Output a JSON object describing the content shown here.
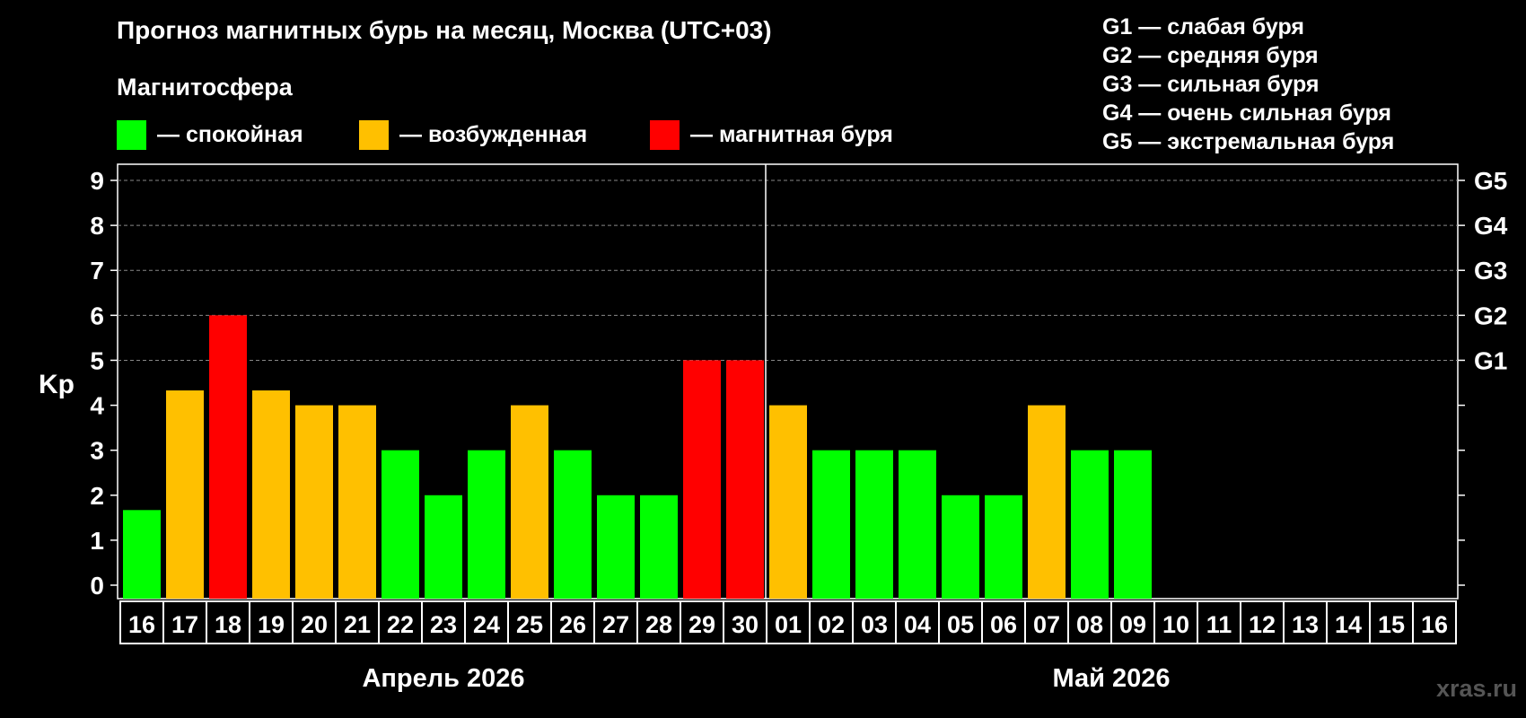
{
  "title": "Прогноз магнитных бурь на месяц, Москва (UTC+03)",
  "subtitle": "Магнитосфера",
  "legend": [
    {
      "label": "— спокойная",
      "color": "#00FF00"
    },
    {
      "label": "— возбужденная",
      "color": "#FFC000"
    },
    {
      "label": "— магнитная буря",
      "color": "#FF0000"
    }
  ],
  "storm_levels": [
    "G1 — слабая буря",
    "G2 — средняя буря",
    "G3 — сильная буря",
    "G4 — очень сильная буря",
    "G5 — экстремальная буря"
  ],
  "watermark": "xras.ru",
  "chart_data": {
    "type": "bar",
    "ylabel": "Kp",
    "ylim": [
      0,
      9
    ],
    "yticks": [
      "0",
      "1",
      "2",
      "3",
      "4",
      "5",
      "6",
      "7",
      "8",
      "9"
    ],
    "right_ticks": [
      {
        "kp": 5,
        "label": "G1"
      },
      {
        "kp": 6,
        "label": "G2"
      },
      {
        "kp": 7,
        "label": "G3"
      },
      {
        "kp": 8,
        "label": "G4"
      },
      {
        "kp": 9,
        "label": "G5"
      }
    ],
    "categories": [
      "16",
      "17",
      "18",
      "19",
      "20",
      "21",
      "22",
      "23",
      "24",
      "25",
      "26",
      "27",
      "28",
      "29",
      "30",
      "01",
      "02",
      "03",
      "04",
      "05",
      "06",
      "07",
      "08",
      "09",
      "10",
      "11",
      "12",
      "13",
      "14",
      "15",
      "16"
    ],
    "values": [
      1.67,
      4.33,
      6,
      4.33,
      4,
      4,
      3,
      2,
      3,
      4,
      3,
      2,
      2,
      5,
      5,
      4,
      3,
      3,
      3,
      2,
      2,
      4,
      3,
      3,
      null,
      null,
      null,
      null,
      null,
      null,
      null
    ],
    "colors": [
      "#00FF00",
      "#FFC000",
      "#FF0000",
      "#FFC000",
      "#FFC000",
      "#FFC000",
      "#00FF00",
      "#00FF00",
      "#00FF00",
      "#FFC000",
      "#00FF00",
      "#00FF00",
      "#00FF00",
      "#FF0000",
      "#FF0000",
      "#FFC000",
      "#00FF00",
      "#00FF00",
      "#00FF00",
      "#00FF00",
      "#00FF00",
      "#FFC000",
      "#00FF00",
      "#00FF00",
      null,
      null,
      null,
      null,
      null,
      null,
      null
    ],
    "months": [
      {
        "label": "Апрель 2026",
        "start": 0,
        "end": 14
      },
      {
        "label": "Май 2026",
        "start": 15,
        "end": 30
      }
    ],
    "grid": true
  }
}
